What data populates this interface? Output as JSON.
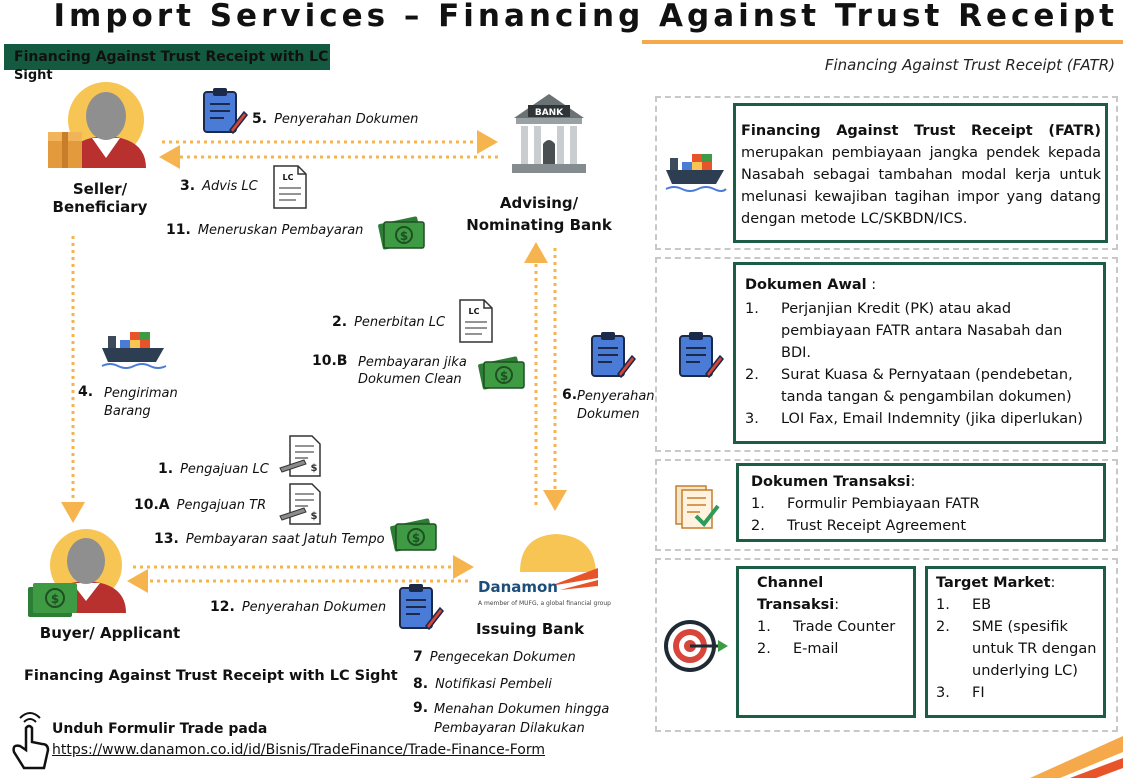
{
  "title": "Import Services – Financing Against Trust Receipt",
  "banner": {
    "line1": "Financing Against Trust Receipt with LC",
    "line2": "Sight"
  },
  "subtitle": "Financing Against Trust Receipt (FATR)",
  "nodes": {
    "seller": "Seller/ Beneficiary",
    "advising_bank": "Advising/ Nominating Bank",
    "buyer": "Buyer/ Applicant",
    "issuing_bank": "Issuing Bank",
    "bank_sign": "BANK",
    "danamon": "Danamon",
    "danamon_tagline": "A member of MUFG, a global financial group"
  },
  "steps": {
    "s5": {
      "num": "5.",
      "text": "Penyerahan Dokumen"
    },
    "s3": {
      "num": "3.",
      "text": "Advis LC"
    },
    "s11": {
      "num": "11.",
      "text": "Meneruskan Pembayaran"
    },
    "s2": {
      "num": "2.",
      "text": "Penerbitan LC"
    },
    "s10b": {
      "num": "10.B",
      "text1": "Pembayaran jika",
      "text2": "Dokumen Clean"
    },
    "s4": {
      "num": "4.",
      "text1": "Pengiriman",
      "text2": "Barang"
    },
    "s6": {
      "num": "6.",
      "text1": "Penyerahan",
      "text2": "Dokumen"
    },
    "s1": {
      "num": "1.",
      "text": "Pengajuan LC"
    },
    "s10a": {
      "num": "10.A",
      "text": "Pengajuan TR"
    },
    "s13": {
      "num": "13.",
      "text": "Pembayaran saat Jatuh Tempo"
    },
    "s12": {
      "num": "12.",
      "text": "Penyerahan Dokumen"
    },
    "s7": {
      "num": "7",
      "text": "Pengecekan Dokumen"
    },
    "s8": {
      "num": "8.",
      "text": "Notifikasi Pembeli"
    },
    "s9": {
      "num": "9.",
      "text1": "Menahan Dokumen hingga",
      "text2": "Pembayaran Dilakukan"
    }
  },
  "icon_labels": {
    "lc": "LC"
  },
  "bottom_caption": "Financing Against Trust Receipt with LC Sight",
  "footer": {
    "label": "Unduh Formulir Trade pada",
    "url": "https://www.danamon.co.id/id/Bisnis/TradeFinance/Trade-Finance-Form"
  },
  "definition": {
    "term": "Financing Against Trust Receipt (FATR)",
    "text": "merupakan pembiayaan jangka pendek kepada Nasabah sebagai tambahan modal kerja untuk melunasi kewajiban tagihan impor yang datang dengan metode LC/SKBDN/ICS."
  },
  "dokumen_awal": {
    "heading": "Dokumen Awal",
    "colon": " :",
    "items": [
      {
        "n": "1.",
        "l1": "Perjanjian Kredit (PK) atau akad",
        "l2": "pembiayaan FATR antara Nasabah dan",
        "l3": "BDI."
      },
      {
        "n": "2.",
        "l1": "Surat Kuasa & Pernyataan (pendebetan,",
        "l2": "tanda tangan & pengambilan dokumen)"
      },
      {
        "n": "3.",
        "l1": "LOI Fax, Email Indemnity (jika diperlukan)"
      }
    ]
  },
  "dokumen_transaksi": {
    "heading": "Dokumen Transaksi",
    "colon": ":",
    "items": [
      {
        "n": "1.",
        "l1": "Formulir Pembiayaan FATR"
      },
      {
        "n": "2.",
        "l1": "Trust Receipt Agreement"
      }
    ]
  },
  "channel": {
    "heading": "Channel Transaksi",
    "colon": ":",
    "items": [
      {
        "n": "1.",
        "l1": "Trade Counter"
      },
      {
        "n": "2.",
        "l1": "E-mail"
      }
    ]
  },
  "target": {
    "heading": "Target Market",
    "colon": ":",
    "items": [
      {
        "n": "1.",
        "l1": "EB"
      },
      {
        "n": "2.",
        "l1": "SME (spesifik",
        "l2": "untuk TR dengan",
        "l3": "underlying LC)"
      },
      {
        "n": "3.",
        "l1": "FI"
      }
    ]
  },
  "colors": {
    "green": "#1d5c45",
    "orange": "#f5a94a",
    "dotted": "#f6b44e",
    "clipboard": "#4a7bd6",
    "money": "#3e9b44"
  }
}
